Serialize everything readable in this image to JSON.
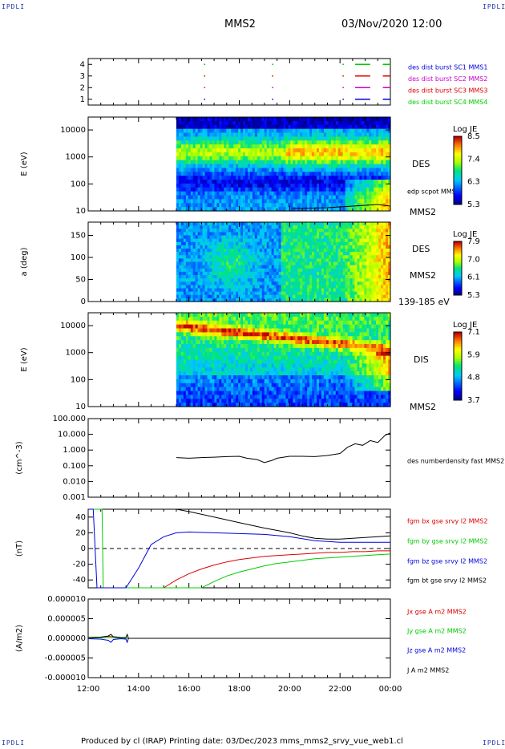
{
  "corners": {
    "tl": "IPDLI",
    "tr": "IPDLI",
    "bl": "IPDLI",
    "br": "IPDLI"
  },
  "header": {
    "spacecraft": "MMS2",
    "datetime": "03/Nov/2020 12:00"
  },
  "footer": {
    "text": "Produced by cl (IRAP)   Printing date: 03/Dec/2023   mms_mms2_srvy_vue_web1.cl"
  },
  "colors": {
    "red": "#dd0000",
    "green": "#00cc00",
    "blue": "#0000dd",
    "magenta": "#cc00cc",
    "black": "#000000"
  },
  "chart_data": [
    {
      "type": "scatter",
      "id": "burst",
      "x_range_hours": [
        12,
        24
      ],
      "yticks": [
        "1",
        "2",
        "3",
        "4"
      ],
      "ylim": [
        0.5,
        4.5
      ],
      "legend": [
        {
          "label": "des dist burst SC1 MMS1",
          "color": "#0000dd"
        },
        {
          "label": "des dist burst SC2 MMS2",
          "color": "#cc00cc"
        },
        {
          "label": "des dist burst SC3 MMS3",
          "color": "#dd0000"
        },
        {
          "label": "des dist burst SC4 MMS4",
          "color": "#00cc00"
        }
      ],
      "series": [
        {
          "level": 4,
          "color": "#00cc00",
          "intervals": [
            [
              16.6,
              16.65
            ],
            [
              19.3,
              19.35
            ],
            [
              22.1,
              22.15
            ],
            [
              22.6,
              23.2
            ],
            [
              23.7,
              24.0
            ]
          ]
        },
        {
          "level": 3,
          "color": "#dd0000",
          "intervals": [
            [
              16.6,
              16.65
            ],
            [
              19.3,
              19.35
            ],
            [
              22.1,
              22.15
            ],
            [
              22.6,
              23.2
            ],
            [
              23.7,
              24.0
            ]
          ]
        },
        {
          "level": 2,
          "color": "#cc00cc",
          "intervals": [
            [
              16.6,
              16.65
            ],
            [
              19.3,
              19.35
            ],
            [
              22.1,
              22.15
            ],
            [
              22.6,
              23.2
            ],
            [
              23.7,
              24.0
            ]
          ]
        },
        {
          "level": 1,
          "color": "#0000dd",
          "intervals": [
            [
              16.6,
              16.65
            ],
            [
              19.3,
              19.35
            ],
            [
              22.1,
              22.15
            ],
            [
              22.6,
              23.2
            ],
            [
              23.7,
              24.0
            ]
          ]
        }
      ]
    },
    {
      "type": "heatmap",
      "id": "des_energy",
      "ylabel": "E (eV)",
      "yscale": "log",
      "ylim": [
        10,
        30000
      ],
      "yticks": [
        "10",
        "100",
        "1000",
        "10000"
      ],
      "data_start_hour": 15.5,
      "label_right": "DES",
      "overlay_label": "edp scpot MMS2",
      "sc_label": "MMS2",
      "colorbar": {
        "title": "Log JE",
        "ticks": [
          "8.5",
          "7.4",
          "6.3",
          "5.3"
        ],
        "min": 5.3,
        "max": 8.5
      }
    },
    {
      "type": "heatmap",
      "id": "des_pitch",
      "ylabel": "a (deg)",
      "ylim": [
        0,
        180
      ],
      "yticks": [
        "0",
        "50",
        "100",
        "150"
      ],
      "data_start_hour": 15.5,
      "label_right": "DES",
      "sc_label": "MMS2",
      "energy_range": "139-185 eV",
      "colorbar": {
        "title": "Log JE",
        "ticks": [
          "7.9",
          "7.0",
          "6.1",
          "5.3"
        ],
        "min": 5.3,
        "max": 7.9
      }
    },
    {
      "type": "heatmap",
      "id": "dis_energy",
      "ylabel": "E (eV)",
      "yscale": "log",
      "ylim": [
        10,
        30000
      ],
      "yticks": [
        "10",
        "100",
        "1000",
        "10000"
      ],
      "data_start_hour": 15.5,
      "label_right": "DIS",
      "sc_label": "MMS2",
      "colorbar": {
        "title": "Log JE",
        "ticks": [
          "7.1",
          "5.9",
          "4.8",
          "3.7"
        ],
        "min": 3.7,
        "max": 7.1
      }
    },
    {
      "type": "line",
      "id": "density",
      "ylabel": "(cm^-3)",
      "yscale": "log",
      "ylim": [
        0.001,
        100
      ],
      "yticks": [
        "0.001",
        "0.010",
        "0.100",
        "1.000",
        "10.000",
        "100.000"
      ],
      "series": [
        {
          "name": "des numberdensity fast MMS2",
          "color": "#000000",
          "x": [
            15.5,
            16.0,
            16.5,
            17.0,
            17.5,
            18.0,
            18.3,
            18.7,
            19.0,
            19.3,
            19.5,
            20.0,
            20.5,
            21.0,
            21.5,
            22.0,
            22.3,
            22.6,
            22.9,
            23.2,
            23.5,
            23.8,
            24.0
          ],
          "y": [
            0.33,
            0.3,
            0.33,
            0.35,
            0.38,
            0.4,
            0.3,
            0.25,
            0.16,
            0.22,
            0.3,
            0.4,
            0.4,
            0.38,
            0.45,
            0.6,
            1.5,
            2.5,
            2.0,
            4.0,
            3.0,
            9.0,
            12.0
          ]
        }
      ]
    },
    {
      "type": "line",
      "id": "bfield",
      "ylabel": "(nT)",
      "ylim": [
        -50,
        50
      ],
      "yticks": [
        "-40",
        "-20",
        "0",
        "20",
        "40"
      ],
      "series": [
        {
          "name": "fgm bx gse srvy l2 MMS2",
          "color": "#dd0000",
          "x": [
            15.0,
            15.5,
            16.0,
            16.5,
            17.0,
            17.5,
            18.0,
            18.5,
            19.0,
            19.5,
            20.0,
            20.5,
            21.0,
            21.5,
            22.0,
            22.5,
            23.0,
            23.5,
            24.0
          ],
          "y": [
            -50,
            -40,
            -32,
            -26,
            -21,
            -17,
            -14,
            -12,
            -10,
            -9,
            -8,
            -7,
            -6,
            -5,
            -5,
            -4,
            -4,
            -3,
            -3
          ]
        },
        {
          "name": "fgm by gse srvy l2 MMS2",
          "color": "#00cc00",
          "x": [
            12.0,
            12.3,
            12.55,
            12.6,
            16.5,
            17.0,
            17.5,
            18.0,
            18.5,
            19.0,
            19.5,
            20.0,
            20.5,
            21.0,
            21.5,
            22.0,
            22.5,
            23.0,
            23.5,
            24.0
          ],
          "y": [
            50,
            50,
            50,
            -50,
            -50,
            -42,
            -35,
            -30,
            -26,
            -22,
            -19,
            -17,
            -15,
            -13,
            -12,
            -11,
            -10,
            -9,
            -8,
            -7
          ]
        },
        {
          "name": "fgm bz gse srvy l2 MMS2",
          "color": "#0000dd",
          "x": [
            12.0,
            12.2,
            12.35,
            12.5,
            13.5,
            14.0,
            14.5,
            15.0,
            15.5,
            16.0,
            17.0,
            18.0,
            19.0,
            20.0,
            21.0,
            22.0,
            23.0,
            24.0
          ],
          "y": [
            50,
            50,
            -50,
            -50,
            -50,
            -25,
            5,
            15,
            20,
            21,
            20,
            19,
            18,
            15,
            10,
            8,
            8,
            8
          ]
        },
        {
          "name": "fgm bt gse srvy l2 MMS2",
          "color": "#000000",
          "x": [
            15.5,
            16.0,
            17.0,
            18.0,
            19.0,
            20.0,
            20.5,
            21.0,
            21.5,
            22.0,
            22.5,
            23.0,
            23.5,
            24.0
          ],
          "y": [
            50,
            47,
            40,
            33,
            26,
            20,
            16,
            13,
            12,
            12,
            13,
            14,
            15,
            16
          ]
        }
      ]
    },
    {
      "type": "line",
      "id": "current",
      "ylabel": "(A/m2)",
      "ylim": [
        -0.0001,
        0.0001
      ],
      "yticks": [
        "-0.000010",
        "-0.000005",
        "0.000000",
        "0.000005",
        "0.000010"
      ],
      "series": [
        {
          "name": "Jx gse A m2 MMS2",
          "color": "#dd0000",
          "x": [
            12.0,
            12.5,
            12.8,
            13.0,
            13.3,
            13.6,
            14.0,
            24.0
          ],
          "y": [
            2e-06,
            3e-06,
            5e-06,
            4e-06,
            2e-06,
            0.0,
            0.0,
            0.0
          ]
        },
        {
          "name": "Jy gse A m2 MMS2",
          "color": "#00cc00",
          "x": [
            12.0,
            12.5,
            12.8,
            13.0,
            13.3,
            13.6,
            14.0,
            24.0
          ],
          "y": [
            5e-07,
            1e-06,
            2e-06,
            1e-06,
            0.0,
            0.0,
            0.0,
            0.0
          ]
        },
        {
          "name": "Jz gse A m2 MMS2",
          "color": "#0000dd",
          "x": [
            12.0,
            12.5,
            12.8,
            12.9,
            13.0,
            13.3,
            13.5,
            13.55,
            13.6,
            14.0,
            24.0
          ],
          "y": [
            -1e-06,
            -2e-06,
            -5e-06,
            -1e-05,
            -3e-06,
            -1e-06,
            -2e-06,
            -1e-05,
            0.0,
            0.0,
            0.0
          ]
        },
        {
          "name": "J A m2 MMS2",
          "color": "#000000",
          "x": [
            12.0,
            12.5,
            12.8,
            12.9,
            13.0,
            13.3,
            13.5,
            13.55,
            13.6,
            14.0,
            24.0
          ],
          "y": [
            2e-06,
            3e-06,
            6e-06,
            1e-05,
            4e-06,
            2e-06,
            2e-06,
            1e-05,
            0.0,
            0.0,
            0.0
          ]
        }
      ]
    }
  ],
  "xaxis": {
    "range_hours": [
      12,
      24
    ],
    "ticks": [
      "12:00",
      "14:00",
      "16:00",
      "18:00",
      "20:00",
      "22:00",
      "00:00"
    ]
  }
}
